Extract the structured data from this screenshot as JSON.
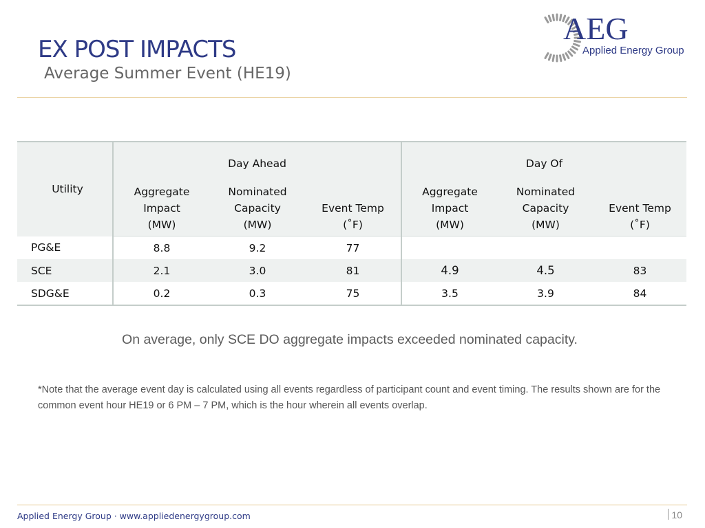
{
  "header": {
    "title": "EX POST IMPACTS",
    "subtitle": "Average Summer Event (HE19)"
  },
  "logo": {
    "brand": "AEG",
    "name": "Applied Energy Group",
    "colors": {
      "primary": "#2e3a86",
      "ring": "#9a9a9a"
    }
  },
  "table": {
    "utility_header": "Utility",
    "groups": [
      "Day Ahead",
      "Day Of"
    ],
    "col_agg": [
      "Aggregate",
      "Impact",
      "(MW)"
    ],
    "col_nom": [
      "Nominated",
      "Capacity",
      "(MW)"
    ],
    "col_temp": [
      "Event Temp",
      "(˚F)"
    ],
    "rows": [
      {
        "utility": "PG&E",
        "da_agg": "8.8",
        "da_nom": "9.2",
        "da_temp": "77",
        "do_agg": "",
        "do_nom": "",
        "do_temp": ""
      },
      {
        "utility": "SCE",
        "da_agg": "2.1",
        "da_nom": "3.0",
        "da_temp": "81",
        "do_agg": "4.9",
        "do_nom": "4.5",
        "do_temp": "83"
      },
      {
        "utility": "SDG&E",
        "da_agg": "0.2",
        "da_nom": "0.3",
        "da_temp": "75",
        "do_agg": "3.5",
        "do_nom": "3.9",
        "do_temp": "84"
      }
    ]
  },
  "summary": "On average, only SCE DO aggregate impacts exceeded nominated capacity.",
  "note": "*Note that the average event day is calculated using all events regardless of participant count and event timing. The results shown are for the common event hour HE19 or 6 PM – 7 PM, which is the hour wherein all events overlap.",
  "footer": {
    "text": "Applied Energy Group · www.appliedenergygroup.com",
    "page": "10"
  }
}
